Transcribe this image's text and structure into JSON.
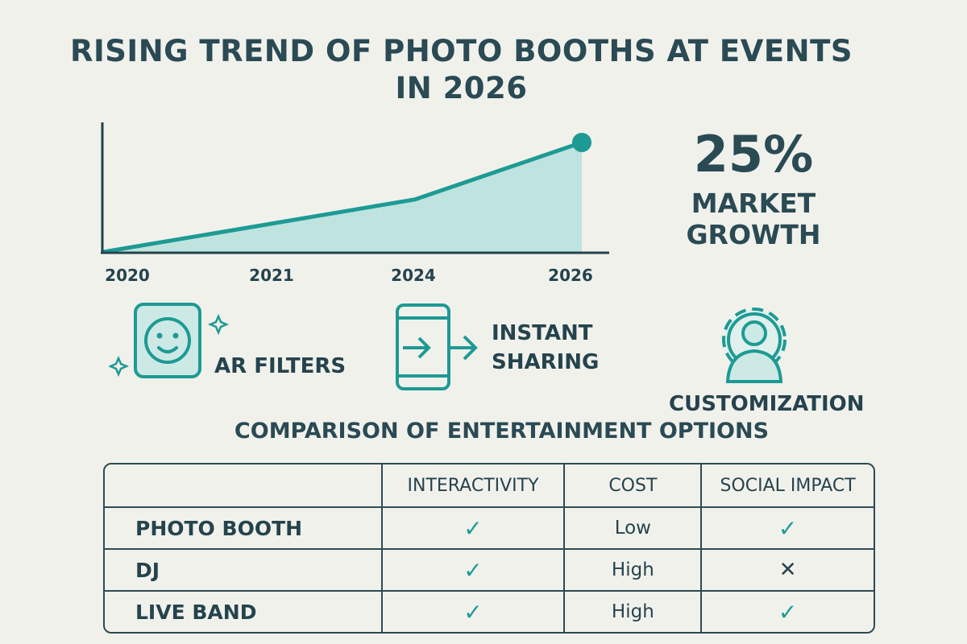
{
  "title_line1": "RISING TREND OF PHOTO BOOTHS AT EVENTS",
  "title_line2": "IN 2026",
  "colors": {
    "accent": "#1e9a94",
    "fill": "#bfe3de",
    "text": "#25434d",
    "background": "#f1f1ec"
  },
  "chart_data": {
    "type": "area",
    "categories": [
      "2020",
      "2021",
      "2024",
      "2026"
    ],
    "values": [
      0,
      24,
      48,
      100
    ],
    "y_axis_labels": "none",
    "ylim": [
      0,
      100
    ],
    "grid": false,
    "endpoint_marker": true,
    "xlabel": "",
    "ylabel": "",
    "title": ""
  },
  "stat": {
    "value": "25%",
    "label": "MARKET GROWTH"
  },
  "features": [
    {
      "label": "AR FILTERS",
      "icon": "smiley-face-icon"
    },
    {
      "label_line1": "INSTANT",
      "label_line2": "SHARING",
      "icon": "phone-share-icon"
    },
    {
      "label": "CUSTOMIZATION",
      "icon": "gear-user-icon"
    }
  ],
  "comparison": {
    "title": "COMPARISON OF ENTERTAINMENT OPTIONS",
    "headers": [
      "",
      "INTERACTIVITY",
      "COST",
      "SOCIAL IMPACT"
    ],
    "rows": [
      {
        "name": "PHOTO BOOTH",
        "interactivity": "✓",
        "cost": "Low",
        "social": "✓"
      },
      {
        "name": "DJ",
        "interactivity": "✓",
        "cost": "High",
        "social": "✕"
      },
      {
        "name": "LIVE BAND",
        "interactivity": "✓",
        "cost": "High",
        "social": "✓"
      }
    ]
  }
}
